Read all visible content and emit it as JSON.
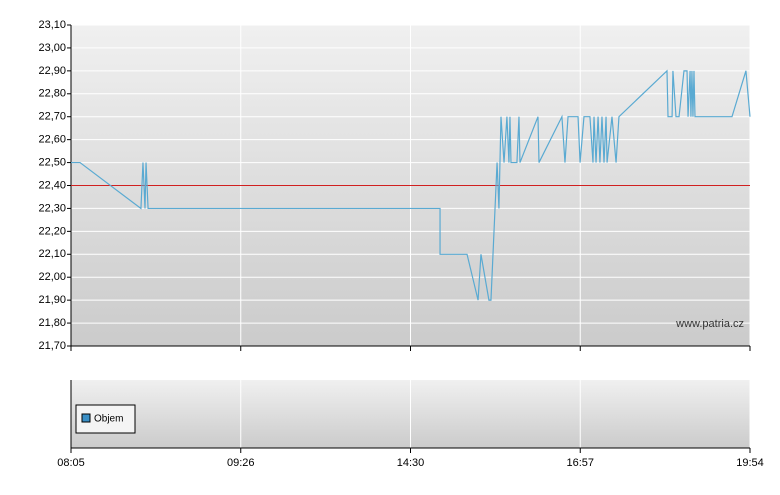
{
  "chart_data": {
    "type": "line",
    "x": [
      0,
      0.053,
      0.412,
      0.424,
      0.436,
      0.442,
      0.454,
      2.174,
      2.174,
      2.333,
      2.398,
      2.415,
      2.462,
      2.474,
      2.51,
      2.521,
      2.533,
      2.551,
      2.568,
      2.58,
      2.586,
      2.592,
      2.627,
      2.639,
      2.645,
      2.751,
      2.757,
      2.892,
      2.91,
      2.928,
      2.987,
      2.999,
      3.022,
      3.057,
      3.075,
      3.081,
      3.093,
      3.105,
      3.116,
      3.128,
      3.14,
      3.152,
      3.158,
      3.187,
      3.211,
      3.228,
      3.511,
      3.517,
      3.541,
      3.546,
      3.564,
      3.582,
      3.611,
      3.629,
      3.635,
      3.647,
      3.652,
      3.658,
      3.664,
      3.67,
      3.676,
      3.894,
      3.976,
      4
    ],
    "series": [
      {
        "color": "#5aaad2",
        "values": [
          22.5,
          22.5,
          22.3,
          22.5,
          22.3,
          22.5,
          22.3,
          22.3,
          22.1,
          22.1,
          21.9,
          22.1,
          21.9,
          21.9,
          22.5,
          22.3,
          22.7,
          22.5,
          22.7,
          22.5,
          22.7,
          22.5,
          22.5,
          22.7,
          22.5,
          22.7,
          22.5,
          22.7,
          22.5,
          22.7,
          22.7,
          22.5,
          22.7,
          22.7,
          22.5,
          22.7,
          22.5,
          22.7,
          22.5,
          22.7,
          22.5,
          22.7,
          22.5,
          22.7,
          22.5,
          22.7,
          22.9,
          22.7,
          22.7,
          22.9,
          22.7,
          22.7,
          22.9,
          22.9,
          22.7,
          22.9,
          22.7,
          22.9,
          22.7,
          22.9,
          22.7,
          22.7,
          22.9,
          22.7
        ]
      }
    ],
    "reference_line": {
      "value": 22.4,
      "color": "#d02020"
    },
    "xlim": [
      0,
      4
    ],
    "xticks": [
      {
        "value": 0,
        "label": "08:05"
      },
      {
        "value": 1,
        "label": "09:26"
      },
      {
        "value": 2,
        "label": "14:30"
      },
      {
        "value": 3,
        "label": "16:57"
      },
      {
        "value": 4,
        "label": "19:54"
      }
    ],
    "ylim": [
      21.7,
      23.1
    ],
    "yticks": [
      {
        "value": 21.7,
        "label": "21,70"
      },
      {
        "value": 21.8,
        "label": "21,80"
      },
      {
        "value": 21.9,
        "label": "21,90"
      },
      {
        "value": 22.0,
        "label": "22,00"
      },
      {
        "value": 22.1,
        "label": "22,10"
      },
      {
        "value": 22.2,
        "label": "22,20"
      },
      {
        "value": 22.3,
        "label": "22,30"
      },
      {
        "value": 22.4,
        "label": "22,40"
      },
      {
        "value": 22.5,
        "label": "22,50"
      },
      {
        "value": 22.6,
        "label": "22,60"
      },
      {
        "value": 22.7,
        "label": "22,70"
      },
      {
        "value": 22.8,
        "label": "22,80"
      },
      {
        "value": 22.9,
        "label": "22,90"
      },
      {
        "value": 23.0,
        "label": "23,00"
      },
      {
        "value": 23.1,
        "label": "23,10"
      }
    ],
    "grid": true,
    "watermark": "www.patria.cz",
    "volume": {
      "name": "Objem",
      "color": "#3a8fc6"
    }
  }
}
